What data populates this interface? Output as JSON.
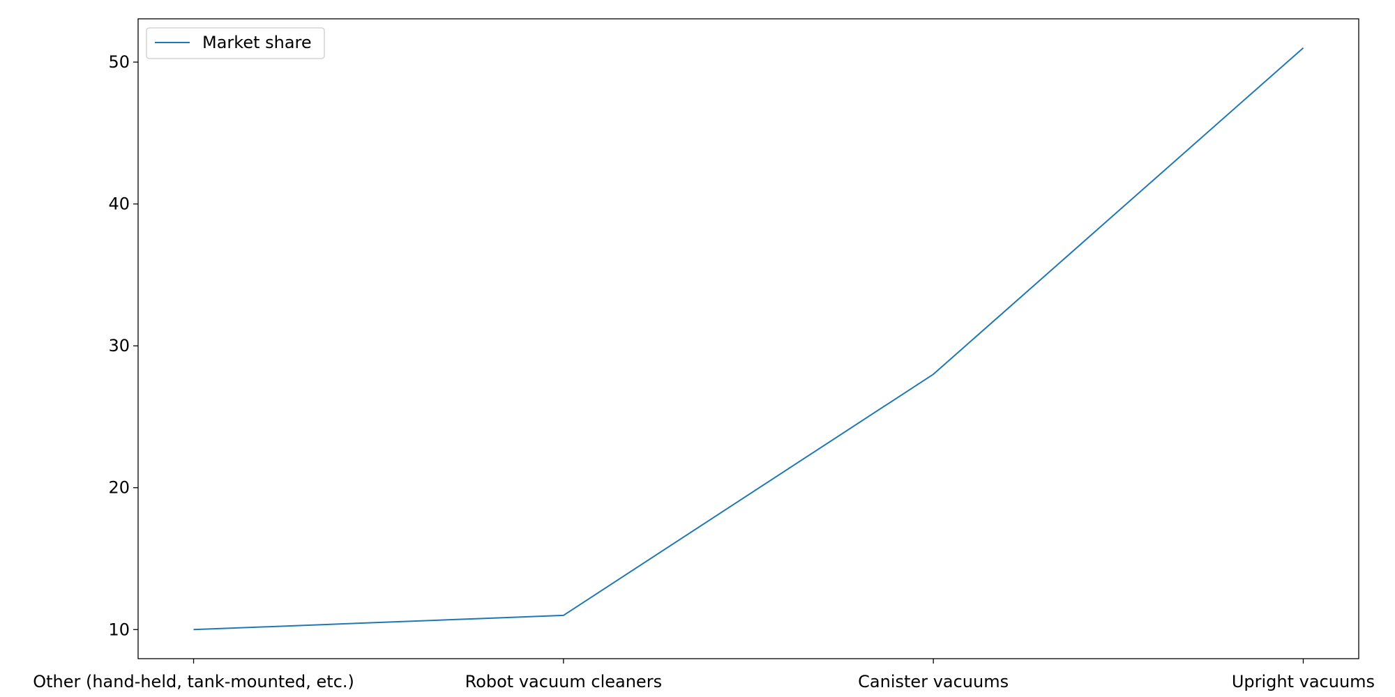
{
  "chart_data": {
    "type": "line",
    "categories": [
      "Other (hand-held, tank-mounted, etc.)",
      "Robot vacuum cleaners",
      "Canister vacuums",
      "Upright vacuums"
    ],
    "series": [
      {
        "name": "Market share",
        "values": [
          10,
          11,
          28,
          51
        ],
        "color": "#1f77b4"
      }
    ],
    "yticks": [
      10,
      20,
      30,
      40,
      50
    ],
    "ylim": [
      7.95,
      53.05
    ],
    "grid": false,
    "legend_position": "top-left"
  }
}
